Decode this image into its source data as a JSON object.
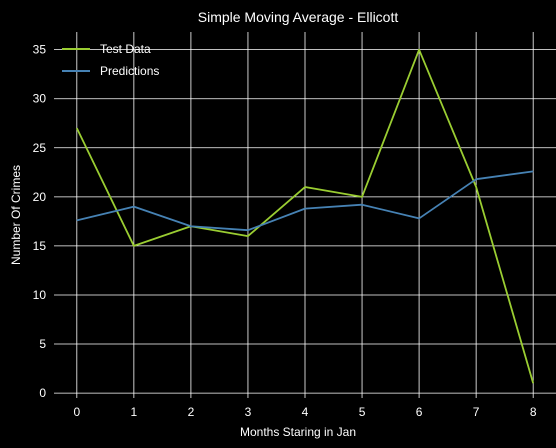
{
  "chart_data": {
    "type": "line",
    "title": "Simple Moving Average - Ellicott",
    "xlabel": "Months Staring in Jan",
    "ylabel": "Number Of Crimes",
    "x": [
      0,
      1,
      2,
      3,
      4,
      5,
      6,
      7,
      8
    ],
    "xlim": [
      -0.4,
      8.4
    ],
    "ylim": [
      -0.5,
      36.8
    ],
    "xticks": [
      0,
      1,
      2,
      3,
      4,
      5,
      6,
      7,
      8
    ],
    "yticks": [
      0,
      5,
      10,
      15,
      20,
      25,
      30,
      35
    ],
    "grid": true,
    "legend_position": "top-left",
    "background": "#000000",
    "series": [
      {
        "name": "Test Data",
        "color": "#9acd32",
        "values": [
          27,
          15,
          17,
          16,
          21,
          20,
          35,
          21,
          1
        ]
      },
      {
        "name": "Predictions",
        "color": "#4682b4",
        "values": [
          17.6,
          19,
          17,
          16.6,
          18.8,
          19.2,
          17.8,
          21.8,
          22.6
        ]
      }
    ]
  }
}
